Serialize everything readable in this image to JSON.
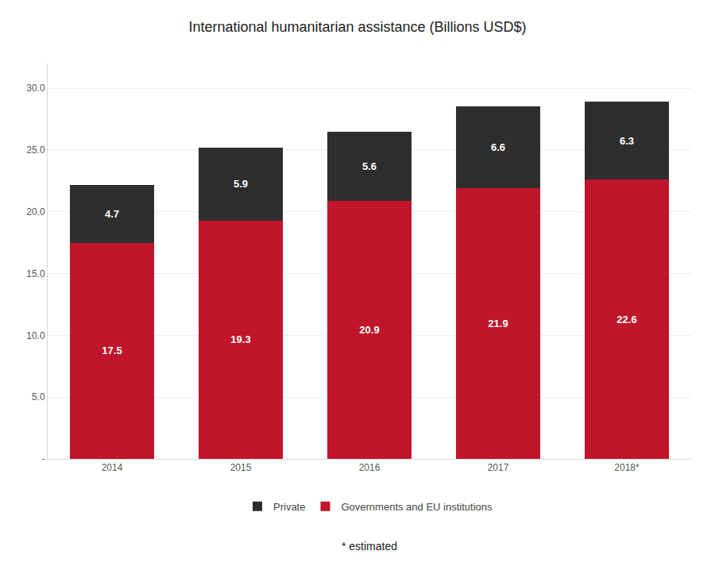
{
  "chart_data": {
    "type": "bar",
    "stacked": true,
    "title": "International humanitarian assistance (Billions USD$)",
    "categories": [
      "2014",
      "2015",
      "2016",
      "2017",
      "2018*"
    ],
    "series": [
      {
        "name": "Governments and EU institutions",
        "color": "#C0152A",
        "values": [
          17.5,
          19.3,
          20.9,
          21.9,
          22.6
        ]
      },
      {
        "name": "Private",
        "color": "#2e2e2e",
        "values": [
          4.7,
          5.9,
          5.6,
          6.6,
          6.3
        ]
      }
    ],
    "data_labels": true,
    "ylim": [
      0,
      32
    ],
    "yticks": [
      {
        "value": 0,
        "label": "-"
      },
      {
        "value": 5,
        "label": "5.0"
      },
      {
        "value": 10,
        "label": "10.0"
      },
      {
        "value": 15,
        "label": "15.0"
      },
      {
        "value": 20,
        "label": "20.0"
      },
      {
        "value": 25,
        "label": "25.0"
      },
      {
        "value": 30,
        "label": "30.0"
      }
    ],
    "grid": true,
    "legend": "bottom",
    "annotations": [
      "* estimated"
    ]
  }
}
